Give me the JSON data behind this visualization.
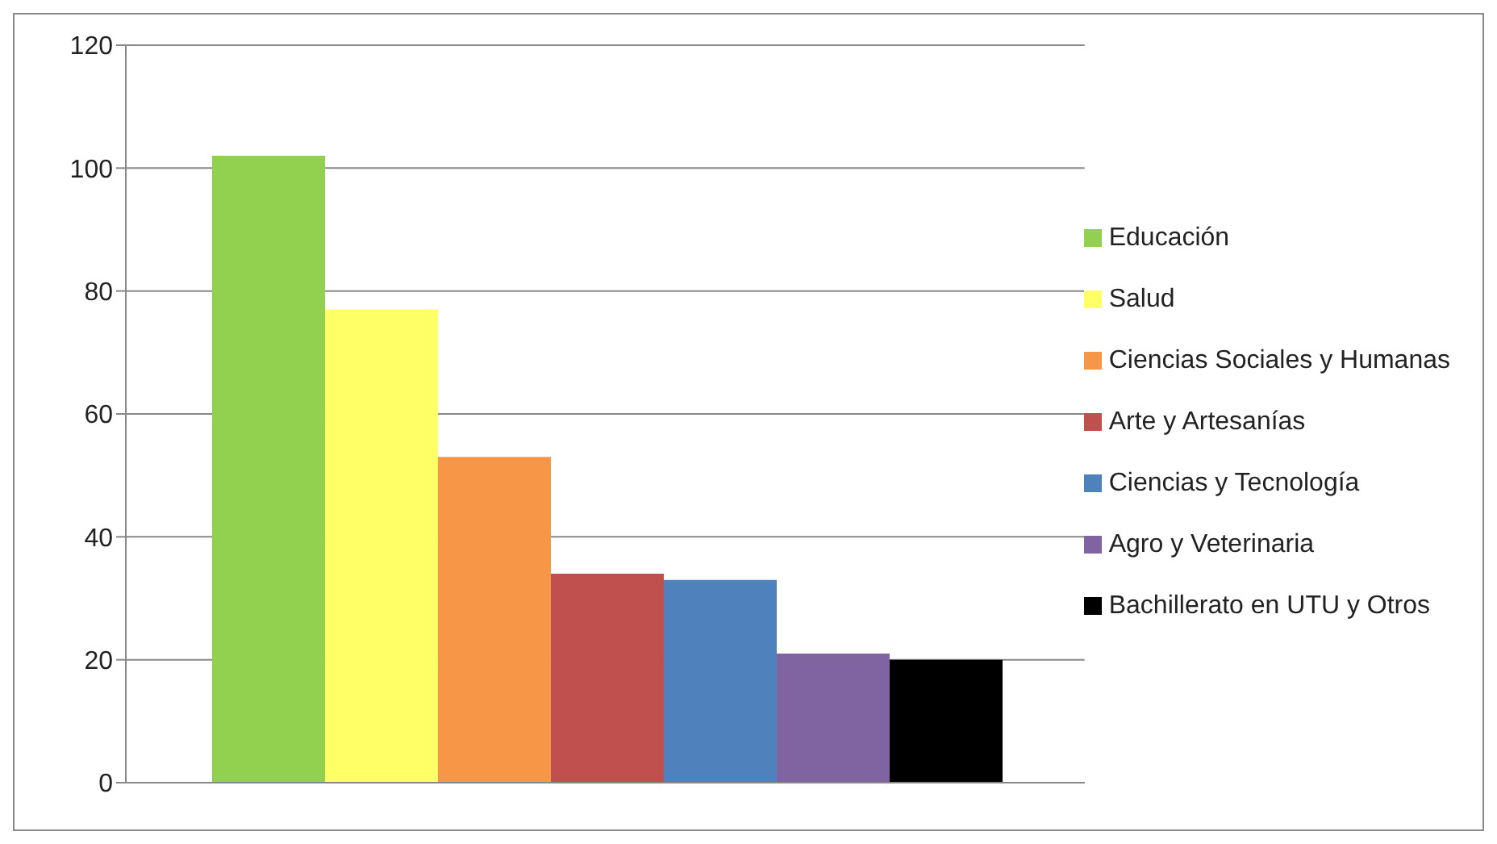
{
  "chart_data": {
    "type": "bar",
    "categories": [
      null
    ],
    "series": [
      {
        "name": "Educación",
        "color": "#92d050",
        "values": [
          102
        ]
      },
      {
        "name": "Salud",
        "color": "#ffff66",
        "values": [
          77
        ]
      },
      {
        "name": "Ciencias Sociales y Humanas",
        "color": "#f79646",
        "values": [
          53
        ]
      },
      {
        "name": "Arte y Artesanías",
        "color": "#c0504d",
        "values": [
          34
        ]
      },
      {
        "name": "Ciencias y Tecnología",
        "color": "#4f81bd",
        "values": [
          33
        ]
      },
      {
        "name": "Agro y Veterinaria",
        "color": "#8064a2",
        "values": [
          21
        ]
      },
      {
        "name": "Bachillerato en UTU y Otros",
        "color": "#000000",
        "values": [
          20
        ]
      }
    ],
    "ylim": [
      0,
      120
    ],
    "yticks": [
      0,
      20,
      40,
      60,
      80,
      100,
      120
    ],
    "grid": "y",
    "legend": "right"
  }
}
